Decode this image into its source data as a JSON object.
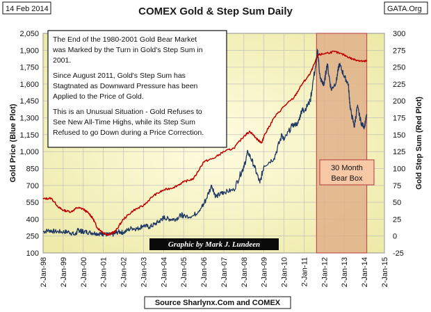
{
  "corner_left": "14 Feb 2014",
  "corner_right": "GATA.Org",
  "chart_data": {
    "type": "line",
    "title": "COMEX Gold & Step Sum Daily",
    "ylabel_left": "Gold Price   (Blue Plot)",
    "ylabel_right": "Gold Step Sum   (Red Plot)",
    "y_left_ticks": [
      "2,050",
      "1,900",
      "1,750",
      "1,600",
      "1,450",
      "1,300",
      "1,150",
      "1,000",
      "850",
      "700",
      "550",
      "400",
      "250",
      "100"
    ],
    "y_left_range": [
      100,
      2050
    ],
    "y_right_ticks": [
      "300",
      "275",
      "250",
      "225",
      "200",
      "175",
      "150",
      "125",
      "100",
      "75",
      "50",
      "25",
      "0",
      "-25"
    ],
    "y_right_range": [
      -25,
      300
    ],
    "x_ticks": [
      "2-Jan-98",
      "2-Jan-99",
      "2-Jan-00",
      "2-Jan-01",
      "2-Jan-02",
      "2-Jan-03",
      "2-Jan-04",
      "2-Jan-05",
      "2-Jan-06",
      "2-Jan-07",
      "2-Jan-08",
      "2-Jan-09",
      "2-Jan-10",
      "2-Jan-11",
      "2-Jan-12",
      "2-Jan-13",
      "2-Jan-14",
      "2-Jan-15"
    ],
    "x_range": [
      1998.0,
      2015.0
    ],
    "series": [
      {
        "name": "Gold Price",
        "axis": "left",
        "color": "#1f3864",
        "points": [
          [
            1998.0,
            289
          ],
          [
            1998.3,
            300
          ],
          [
            1998.6,
            290
          ],
          [
            1999.0,
            288
          ],
          [
            1999.3,
            286
          ],
          [
            1999.6,
            260
          ],
          [
            1999.75,
            305
          ],
          [
            1999.9,
            292
          ],
          [
            2000.0,
            290
          ],
          [
            2000.3,
            283
          ],
          [
            2000.6,
            275
          ],
          [
            2000.9,
            270
          ],
          [
            2001.0,
            268
          ],
          [
            2001.3,
            262
          ],
          [
            2001.5,
            265
          ],
          [
            2001.75,
            288
          ],
          [
            2002.0,
            282
          ],
          [
            2002.4,
            320
          ],
          [
            2002.7,
            314
          ],
          [
            2003.0,
            345
          ],
          [
            2003.3,
            330
          ],
          [
            2003.6,
            360
          ],
          [
            2003.9,
            395
          ],
          [
            2004.0,
            415
          ],
          [
            2004.3,
            400
          ],
          [
            2004.6,
            400
          ],
          [
            2004.9,
            440
          ],
          [
            2005.0,
            425
          ],
          [
            2005.5,
            430
          ],
          [
            2005.9,
            510
          ],
          [
            2006.0,
            530
          ],
          [
            2006.4,
            700
          ],
          [
            2006.6,
            600
          ],
          [
            2006.9,
            630
          ],
          [
            2007.0,
            640
          ],
          [
            2007.5,
            660
          ],
          [
            2007.9,
            830
          ],
          [
            2008.0,
            860
          ],
          [
            2008.2,
            1000
          ],
          [
            2008.5,
            880
          ],
          [
            2008.8,
            720
          ],
          [
            2009.0,
            875
          ],
          [
            2009.5,
            940
          ],
          [
            2009.9,
            1150
          ],
          [
            2010.0,
            1100
          ],
          [
            2010.4,
            1230
          ],
          [
            2010.7,
            1250
          ],
          [
            2010.9,
            1380
          ],
          [
            2011.0,
            1360
          ],
          [
            2011.3,
            1450
          ],
          [
            2011.6,
            1800
          ],
          [
            2011.67,
            1900
          ],
          [
            2011.8,
            1650
          ],
          [
            2011.95,
            1600
          ],
          [
            2012.0,
            1600
          ],
          [
            2012.15,
            1780
          ],
          [
            2012.35,
            1550
          ],
          [
            2012.6,
            1620
          ],
          [
            2012.75,
            1780
          ],
          [
            2013.0,
            1670
          ],
          [
            2013.2,
            1600
          ],
          [
            2013.3,
            1380
          ],
          [
            2013.5,
            1220
          ],
          [
            2013.65,
            1400
          ],
          [
            2013.85,
            1250
          ],
          [
            2014.0,
            1220
          ],
          [
            2014.12,
            1320
          ]
        ]
      },
      {
        "name": "Gold Step Sum",
        "axis": "right",
        "color": "#c00000",
        "points": [
          [
            1998.0,
            55
          ],
          [
            1998.4,
            56
          ],
          [
            1998.8,
            42
          ],
          [
            1999.0,
            38
          ],
          [
            1999.4,
            36
          ],
          [
            1999.7,
            42
          ],
          [
            2000.0,
            40
          ],
          [
            2000.3,
            33
          ],
          [
            2000.5,
            25
          ],
          [
            2000.7,
            12
          ],
          [
            2001.0,
            5
          ],
          [
            2001.2,
            2
          ],
          [
            2001.4,
            4
          ],
          [
            2001.6,
            7
          ],
          [
            2002.0,
            25
          ],
          [
            2002.5,
            38
          ],
          [
            2003.0,
            45
          ],
          [
            2003.5,
            60
          ],
          [
            2004.0,
            68
          ],
          [
            2004.5,
            72
          ],
          [
            2005.0,
            80
          ],
          [
            2005.5,
            85
          ],
          [
            2006.0,
            110
          ],
          [
            2006.5,
            115
          ],
          [
            2007.0,
            125
          ],
          [
            2007.5,
            130
          ],
          [
            2008.0,
            148
          ],
          [
            2008.3,
            155
          ],
          [
            2008.7,
            142
          ],
          [
            2008.9,
            138
          ],
          [
            2009.0,
            148
          ],
          [
            2009.5,
            175
          ],
          [
            2010.0,
            192
          ],
          [
            2010.5,
            205
          ],
          [
            2010.9,
            225
          ],
          [
            2011.3,
            240
          ],
          [
            2011.7,
            268
          ],
          [
            2012.0,
            270
          ],
          [
            2012.5,
            273
          ],
          [
            2013.0,
            268
          ],
          [
            2013.4,
            262
          ],
          [
            2013.7,
            260
          ],
          [
            2014.0,
            258
          ],
          [
            2014.12,
            260
          ]
        ]
      }
    ],
    "annotations": {
      "note_lines": [
        "The End of the 1980-2001 Gold Bear Market",
        "was Marked by the Turn in Gold's Step Sum in",
        "2001.",
        "Since August 2011, Gold's Step Sum has",
        "Stagtnated as Downward Pressure has been",
        "Applied to the Price of Gold.",
        "This is an Unusual Situation - Gold Refuses to",
        "See New All-Time Highs, while its Step Sum",
        "Refused to go Down during a Price Correction."
      ],
      "bear_box": {
        "x_start": 2011.62,
        "x_end": 2014.12,
        "label_lines": [
          "30 Month",
          "Bear Box"
        ]
      },
      "credit": "Graphic by Mark J. Lundeen",
      "source": "Source Sharlynx.Com and COMEX"
    },
    "colors": {
      "plot_bg_center": "#fffde2",
      "plot_bg_edge": "#ede9a6",
      "bear_box_fill": "#e0b089",
      "bear_box_stroke": "#c0504d",
      "grid": "#b8b8b8"
    }
  }
}
